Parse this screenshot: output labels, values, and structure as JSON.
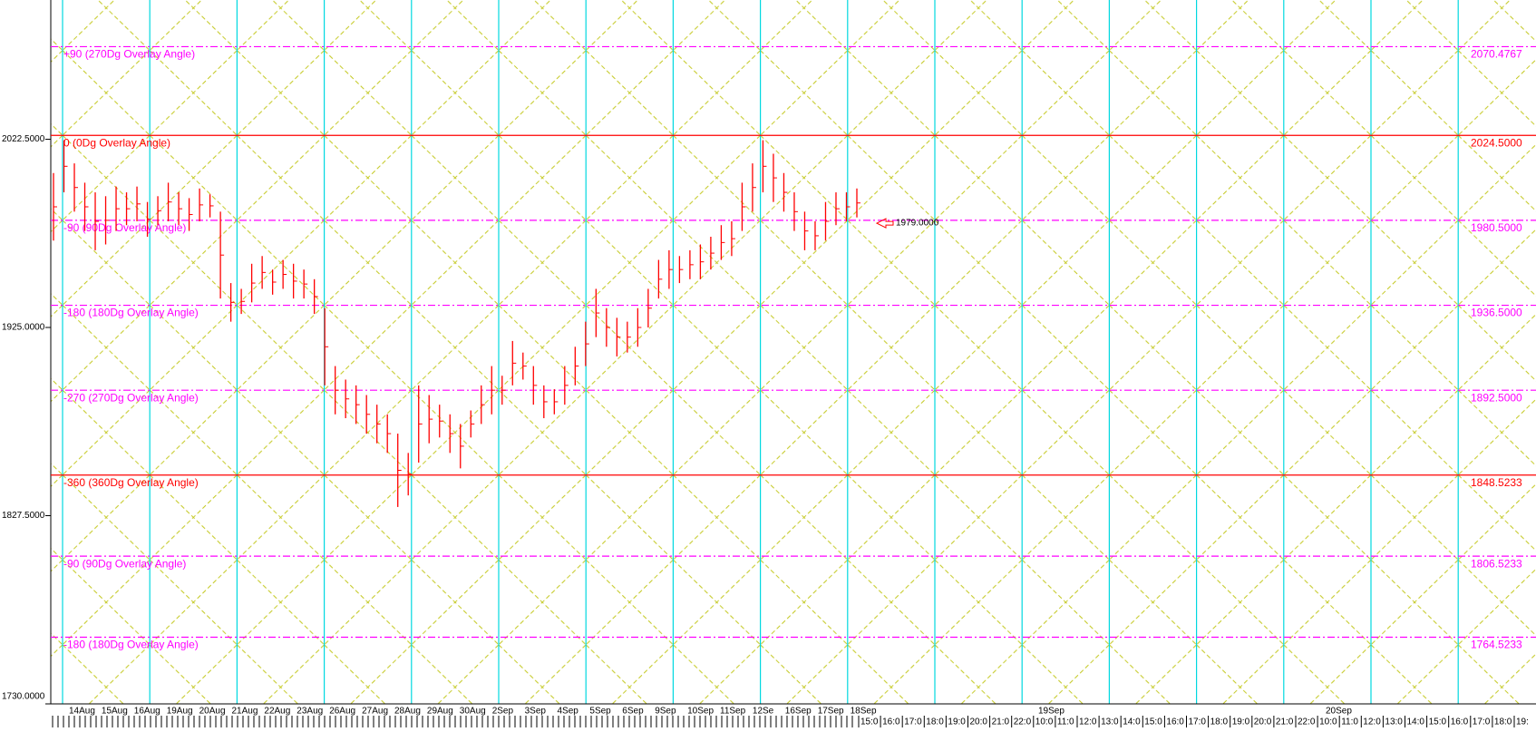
{
  "chart_data": {
    "type": "ohlc",
    "color": "#ff0000",
    "ylim": [
      1730,
      2093.7
    ],
    "yticks": [
      {
        "value": 1730,
        "label": "1730.0000"
      },
      {
        "value": 1827.5,
        "label": "1827.5000"
      },
      {
        "value": 1925,
        "label": "1925.0000"
      },
      {
        "value": 2022.5,
        "label": "2022.5000"
      }
    ],
    "high": [
      2005,
      2022,
      2010,
      2000,
      1995,
      1993,
      1998,
      1995,
      1998,
      1990,
      1993,
      2000,
      1995,
      1992,
      1997,
      1994,
      1985,
      1948,
      1945,
      1958,
      1962,
      1955,
      1960,
      1958,
      1955,
      1950,
      1935,
      1905,
      1898,
      1895,
      1890,
      1885,
      1880,
      1870,
      1860,
      1895,
      1890,
      1885,
      1880,
      1875,
      1882,
      1895,
      1905,
      1900,
      1918,
      1912,
      1905,
      1895,
      1893,
      1905,
      1915,
      1928,
      1945,
      1935,
      1930,
      1928,
      1935,
      1945,
      1960,
      1965,
      1962,
      1965,
      1968,
      1972,
      1978,
      1980,
      2000,
      2010,
      2022,
      2015,
      2005,
      1995,
      1985,
      1980,
      1990,
      1995,
      1995,
      1997
    ],
    "low": [
      1970,
      1995,
      1985,
      1975,
      1965,
      1968,
      1975,
      1978,
      1980,
      1972,
      1978,
      1980,
      1978,
      1975,
      1980,
      1982,
      1940,
      1928,
      1932,
      1938,
      1945,
      1942,
      1945,
      1940,
      1940,
      1932,
      1895,
      1880,
      1878,
      1875,
      1870,
      1865,
      1860,
      1832,
      1838,
      1855,
      1865,
      1868,
      1860,
      1852,
      1868,
      1875,
      1880,
      1885,
      1895,
      1898,
      1885,
      1878,
      1880,
      1885,
      1895,
      1905,
      1920,
      1915,
      1910,
      1912,
      1915,
      1925,
      1940,
      1945,
      1948,
      1950,
      1950,
      1955,
      1960,
      1962,
      1975,
      1985,
      1995,
      1990,
      1985,
      1975,
      1965,
      1965,
      1970,
      1978,
      1980,
      1982
    ],
    "levels": [
      {
        "label": "+90 (270Dg Overlay Angle)",
        "value": 2070.4767,
        "value_label": "2070.4767",
        "color": "#ff00ff",
        "style": "dash"
      },
      {
        "label": "0 (0Dg Overlay Angle)",
        "value": 2024.5,
        "value_label": "2024.5000",
        "color": "#ff0000",
        "style": "solid"
      },
      {
        "label": "-90 (90Dg Overlay Angle)",
        "value": 1980.5,
        "value_label": "1980.5000",
        "color": "#ff00ff",
        "style": "dash"
      },
      {
        "label": "-180 (180Dg Overlay Angle)",
        "value": 1936.5,
        "value_label": "1936.5000",
        "color": "#ff00ff",
        "style": "dash"
      },
      {
        "label": "-270 (270Dg Overlay Angle)",
        "value": 1892.5,
        "value_label": "1892.5000",
        "color": "#ff00ff",
        "style": "dash"
      },
      {
        "label": "-360 (360Dg Overlay Angle)",
        "value": 1848.5233,
        "value_label": "1848.5233",
        "color": "#ff0000",
        "style": "solid"
      },
      {
        "label": "-90 (90Dg Overlay Angle)",
        "value": 1806.5233,
        "value_label": "1806.5233",
        "color": "#ff00ff",
        "style": "dash"
      },
      {
        "label": "-180 (180Dg Overlay Angle)",
        "value": 1764.5233,
        "value_label": "1764.5233",
        "color": "#ff00ff",
        "style": "dash"
      }
    ],
    "price_marker": {
      "value": 1979,
      "label": "1979.0000"
    },
    "date_labels": [
      "14Aug",
      "15Aug",
      "16Aug",
      "19Aug",
      "20Aug",
      "21Aug",
      "22Aug",
      "23Aug",
      "26Aug",
      "27Aug",
      "28Aug",
      "29Aug",
      "30Aug",
      "2Sep",
      "3Sep",
      "4Sep",
      "5Sep",
      "6Sep",
      "9Sep",
      "10Sep",
      "11Sep",
      "12Se",
      "16Sep",
      "17Sep",
      "18Sep",
      "19Sep",
      "20Sep"
    ],
    "hour_labels": [
      "15:0",
      "16:0",
      "17:0",
      "18:0",
      "19:0",
      "20:0",
      "21:0",
      "22:0",
      "10:0",
      "11:0",
      "12:0",
      "13:0",
      "14:0",
      "15:0",
      "16:0",
      "17:0",
      "18:0",
      "19:0",
      "20:0",
      "21:0",
      "22:0",
      "10:0",
      "11:0",
      "12:0",
      "13:0",
      "14:0",
      "15:0",
      "16:0",
      "17:0",
      "18:0",
      "19:"
    ]
  }
}
